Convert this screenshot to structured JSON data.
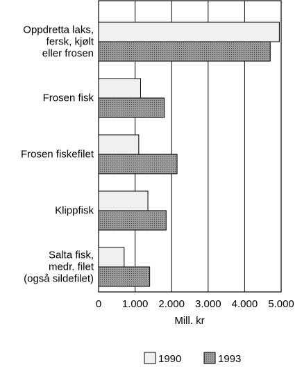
{
  "chart_data": {
    "type": "bar",
    "orientation": "horizontal",
    "categories": [
      "Oppdretta laks,\nfersk, kjølt\neller frosen",
      "Frosen fisk",
      "Frosen fiskefilet",
      "Klippfisk",
      "Salta fisk,\nmedr. filet\n(også sildefilet)"
    ],
    "series": [
      {
        "name": "1990",
        "color": "#f0f0f0",
        "values": [
          4950,
          1150,
          1100,
          1350,
          700
        ]
      },
      {
        "name": "1993",
        "color": "#7a7a7a",
        "values": [
          4700,
          1800,
          2150,
          1850,
          1400
        ]
      }
    ],
    "xlim": [
      0,
      5000
    ],
    "xticks": [
      0,
      {
        "value": 1000,
        "label": "1.000"
      },
      {
        "value": 2000,
        "label": "2.000"
      },
      {
        "value": 3000,
        "label": "3.000"
      },
      {
        "value": 4000,
        "label": "4.000"
      },
      {
        "value": 5000,
        "label": "5.000"
      }
    ],
    "xlabel": "Mill. kr",
    "grid": true,
    "legend": "bottom"
  }
}
